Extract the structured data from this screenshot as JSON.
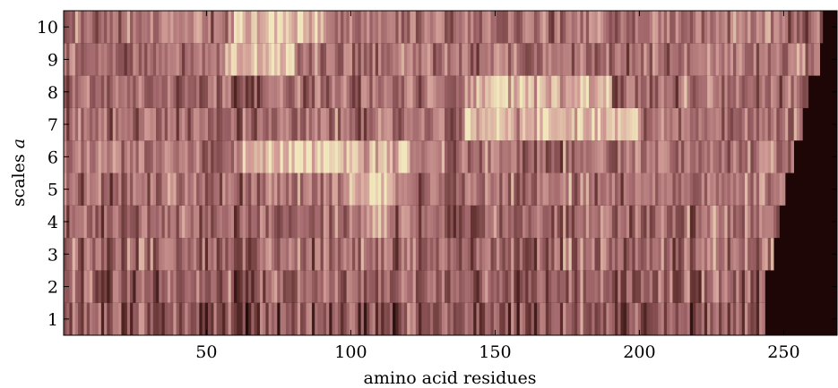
{
  "chart_data": {
    "type": "heatmap",
    "title": "",
    "xlabel": "amino acid residues",
    "ylabel_main": "scales ",
    "ylabel_var": "a",
    "x_range": [
      1,
      268
    ],
    "y_range": [
      0.5,
      10.5
    ],
    "xticks": [
      50,
      100,
      150,
      200,
      250
    ],
    "xtick_labels": [
      "50",
      "100",
      "150",
      "200",
      "250"
    ],
    "yticks": [
      1,
      2,
      3,
      4,
      5,
      6,
      7,
      8,
      9,
      10
    ],
    "ytick_labels": [
      "1",
      "2",
      "3",
      "4",
      "5",
      "6",
      "7",
      "8",
      "9",
      "10"
    ],
    "n_residues": 268,
    "scales": [
      1,
      2,
      3,
      4,
      5,
      6,
      7,
      8,
      9,
      10
    ],
    "signal_end_residue": [
      243,
      243,
      246,
      248,
      250,
      253,
      256,
      258,
      262,
      263
    ],
    "row_mean_intensity": [
      0.35,
      0.45,
      0.55,
      0.5,
      0.58,
      0.6,
      0.55,
      0.55,
      0.6,
      0.62
    ],
    "bright_regions": [
      {
        "scale": 5,
        "residue_range": [
          100,
          115
        ]
      },
      {
        "scale": 4,
        "residue_range": [
          105,
          112
        ]
      },
      {
        "scale": 6,
        "residue_range": [
          60,
          120
        ]
      },
      {
        "scale": 7,
        "residue_range": [
          140,
          200
        ]
      },
      {
        "scale": 8,
        "residue_range": [
          140,
          190
        ]
      },
      {
        "scale": 9,
        "residue_range": [
          55,
          80
        ]
      },
      {
        "scale": 10,
        "residue_range": [
          60,
          90
        ]
      }
    ],
    "colormap": [
      "#1c0505",
      "#5e2e2c",
      "#a0666a",
      "#d19c96",
      "#f2e6bd"
    ],
    "background_color": "#1e0606",
    "grid": false,
    "legend": "none"
  }
}
